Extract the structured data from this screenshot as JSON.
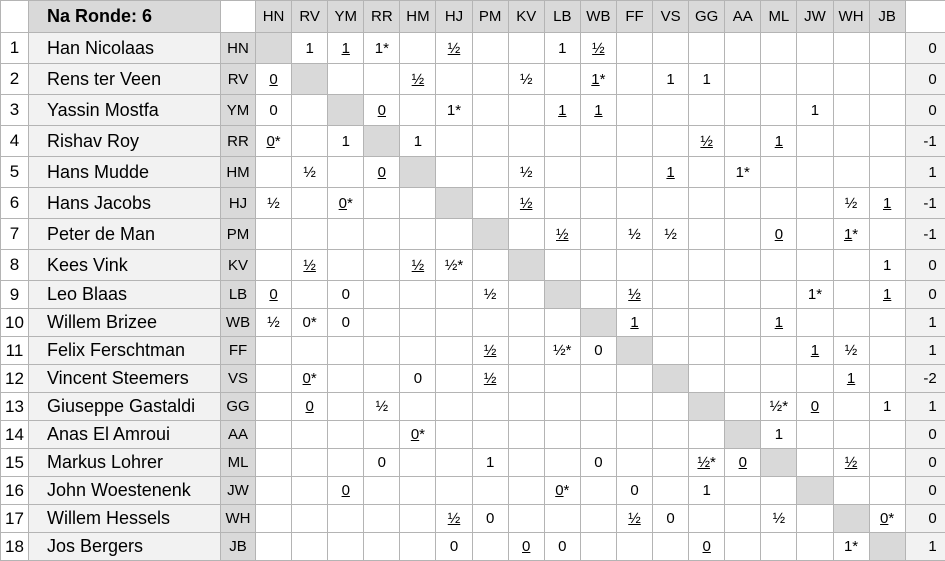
{
  "title": "Na Ronde: 6",
  "columns": [
    "HN",
    "RV",
    "YM",
    "RR",
    "HM",
    "HJ",
    "PM",
    "KV",
    "LB",
    "WB",
    "FF",
    "VS",
    "GG",
    "AA",
    "ML",
    "JW",
    "WH",
    "JB"
  ],
  "underline_marker": "_",
  "colors": {
    "header_bg": "#d9d9d9",
    "name_bg": "#f2f2f2",
    "diagonal_bg": "#d9d9d9",
    "grid": "#b4b4b4"
  },
  "players": [
    {
      "nr": "1",
      "name": "Han Nicolaas",
      "abbr": "HN",
      "total": "0",
      "results": [
        "",
        "1",
        "_1",
        "1*",
        "",
        "_½",
        "",
        "",
        "1",
        "_½",
        "",
        "",
        "",
        "",
        "",
        "",
        "",
        ""
      ]
    },
    {
      "nr": "2",
      "name": "Rens ter Veen",
      "abbr": "RV",
      "total": "0",
      "results": [
        "_0",
        "",
        "",
        "",
        "_½",
        "",
        "",
        "½",
        "",
        "_1*",
        "",
        "1",
        "1",
        "",
        "",
        "",
        "",
        ""
      ]
    },
    {
      "nr": "3",
      "name": "Yassin Mostfa",
      "abbr": "YM",
      "total": "0",
      "results": [
        "0",
        "",
        "",
        "_0",
        "",
        "1*",
        "",
        "",
        "_1",
        "_1",
        "",
        "",
        "",
        "",
        "",
        "1",
        "",
        ""
      ]
    },
    {
      "nr": "4",
      "name": "Rishav Roy",
      "abbr": "RR",
      "total": "-1",
      "results": [
        "_0*",
        "",
        "1",
        "",
        "1",
        "",
        "",
        "",
        "",
        "",
        "",
        "",
        "_½",
        "",
        "_1",
        "",
        "",
        ""
      ]
    },
    {
      "nr": "5",
      "name": "Hans Mudde",
      "abbr": "HM",
      "total": "1",
      "results": [
        "",
        "½",
        "",
        "_0",
        "",
        "",
        "",
        "½",
        "",
        "",
        "",
        "_1",
        "",
        "1*",
        "",
        "",
        "",
        ""
      ]
    },
    {
      "nr": "6",
      "name": "Hans Jacobs",
      "abbr": "HJ",
      "total": "-1",
      "results": [
        "½",
        "",
        "_0*",
        "",
        "",
        "",
        "",
        "_½",
        "",
        "",
        "",
        "",
        "",
        "",
        "",
        "",
        "½",
        "_1"
      ]
    },
    {
      "nr": "7",
      "name": "Peter de Man",
      "abbr": "PM",
      "total": "-1",
      "results": [
        "",
        "",
        "",
        "",
        "",
        "",
        "",
        "",
        "_½",
        "",
        "½",
        "½",
        "",
        "",
        "_0",
        "",
        "_1*",
        ""
      ]
    },
    {
      "nr": "8",
      "name": "Kees Vink",
      "abbr": "KV",
      "total": "0",
      "results": [
        "",
        "_½",
        "",
        "",
        "_½",
        "½*",
        "",
        "",
        "",
        "",
        "",
        "",
        "",
        "",
        "",
        "",
        "",
        "1"
      ]
    },
    {
      "nr": "9",
      "name": "Leo Blaas",
      "abbr": "LB",
      "total": "0",
      "results": [
        "_0",
        "",
        "0",
        "",
        "",
        "",
        "½",
        "",
        "",
        "",
        "_½",
        "",
        "",
        "",
        "",
        "1*",
        "",
        "_1"
      ]
    },
    {
      "nr": "10",
      "name": "Willem Brizee",
      "abbr": "WB",
      "total": "1",
      "results": [
        "½",
        "0*",
        "0",
        "",
        "",
        "",
        "",
        "",
        "",
        "",
        "_1",
        "",
        "",
        "",
        "_1",
        "",
        "",
        ""
      ]
    },
    {
      "nr": "11",
      "name": "Felix Ferschtman",
      "abbr": "FF",
      "total": "1",
      "results": [
        "",
        "",
        "",
        "",
        "",
        "",
        "_½",
        "",
        "½*",
        "0",
        "",
        "",
        "",
        "",
        "",
        "_1",
        "½",
        ""
      ]
    },
    {
      "nr": "12",
      "name": "Vincent Steemers",
      "abbr": "VS",
      "total": "-2",
      "results": [
        "",
        "_0*",
        "",
        "",
        "0",
        "",
        "_½",
        "",
        "",
        "",
        "",
        "",
        "",
        "",
        "",
        "",
        "_1",
        ""
      ]
    },
    {
      "nr": "13",
      "name": "Giuseppe Gastaldi",
      "abbr": "GG",
      "total": "1",
      "results": [
        "",
        "_0",
        "",
        "½",
        "",
        "",
        "",
        "",
        "",
        "",
        "",
        "",
        "",
        "",
        "½*",
        "_0",
        "",
        "1"
      ]
    },
    {
      "nr": "14",
      "name": "Anas El Amroui",
      "abbr": "AA",
      "total": "0",
      "results": [
        "",
        "",
        "",
        "",
        "_0*",
        "",
        "",
        "",
        "",
        "",
        "",
        "",
        "",
        "",
        "1",
        "",
        "",
        ""
      ]
    },
    {
      "nr": "15",
      "name": "Markus Lohrer",
      "abbr": "ML",
      "total": "0",
      "results": [
        "",
        "",
        "",
        "0",
        "",
        "",
        "1",
        "",
        "",
        "0",
        "",
        "",
        "_½*",
        "_0",
        "",
        "",
        "_½",
        ""
      ]
    },
    {
      "nr": "16",
      "name": "John Woestenenk",
      "abbr": "JW",
      "total": "0",
      "results": [
        "",
        "",
        "_0",
        "",
        "",
        "",
        "",
        "",
        "_0*",
        "",
        "0",
        "",
        "1",
        "",
        "",
        "",
        "",
        ""
      ]
    },
    {
      "nr": "17",
      "name": "Willem Hessels",
      "abbr": "WH",
      "total": "0",
      "results": [
        "",
        "",
        "",
        "",
        "",
        "_½",
        "0",
        "",
        "",
        "",
        "_½",
        "0",
        "",
        "",
        "½",
        "",
        "",
        "_0*"
      ]
    },
    {
      "nr": "18",
      "name": "Jos Bergers",
      "abbr": "JB",
      "total": "1",
      "results": [
        "",
        "",
        "",
        "",
        "",
        "0",
        "",
        "_0",
        "0",
        "",
        "",
        "",
        "_0",
        "",
        "",
        "",
        "1*",
        ""
      ]
    }
  ]
}
